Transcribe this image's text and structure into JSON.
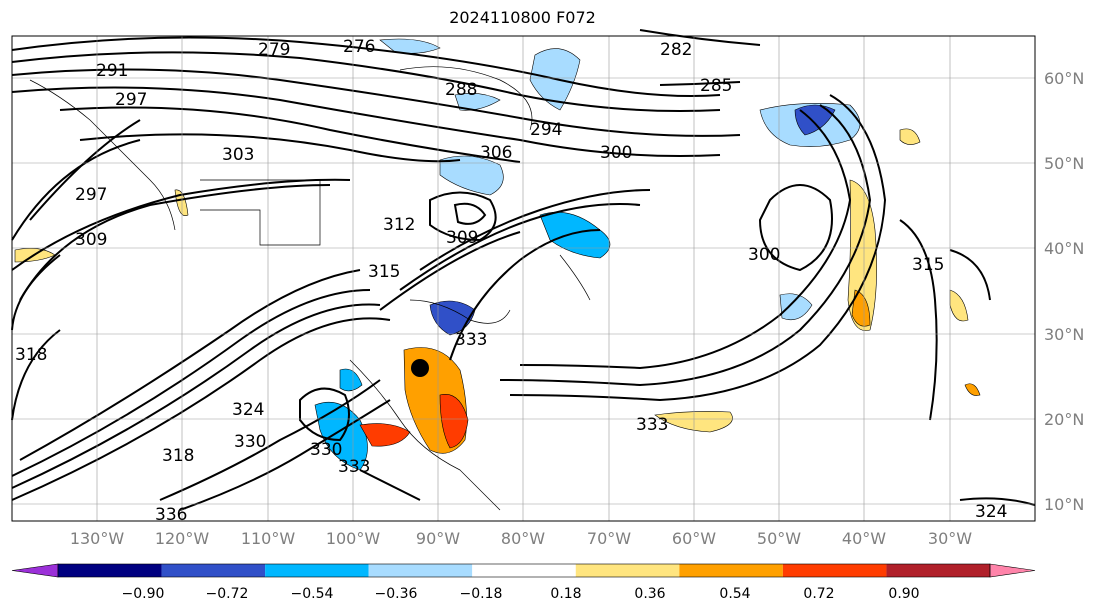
{
  "title": "2024110800 F072",
  "lon_labels": [
    "130°W",
    "120°W",
    "110°W",
    "100°W",
    "90°W",
    "80°W",
    "70°W",
    "60°W",
    "50°W",
    "40°W",
    "30°W"
  ],
  "lat_labels": [
    "60°N",
    "50°N",
    "40°N",
    "30°N",
    "20°N",
    "10°N"
  ],
  "contour_labels": [
    "279",
    "276",
    "282",
    "285",
    "291",
    "297",
    "288",
    "294",
    "306",
    "300",
    "303",
    "297",
    "309",
    "312",
    "309",
    "315",
    "300",
    "315",
    "318",
    "324",
    "330",
    "333",
    "330",
    "333",
    "318",
    "336",
    "333",
    "324"
  ],
  "colorbar": {
    "ticks": [
      "−0.90",
      "−0.72",
      "−0.54",
      "−0.36",
      "−0.18",
      "0.18",
      "0.36",
      "0.54",
      "0.72",
      "0.90"
    ],
    "colors": [
      "#9b30d8",
      "#000080",
      "#3050c8",
      "#00b7ff",
      "#a8dcff",
      "#ffffff",
      "#ffe57f",
      "#ffa000",
      "#ff3c00",
      "#b0202a",
      "#ff84aa"
    ]
  },
  "marker": {
    "label": "storm-center"
  }
}
